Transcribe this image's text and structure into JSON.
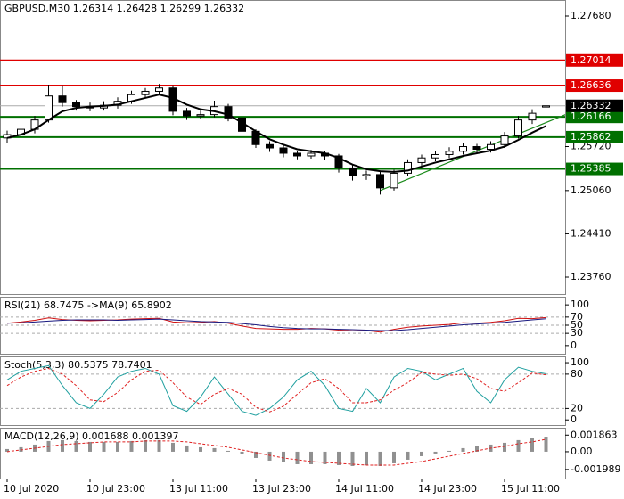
{
  "chart_data": [
    {
      "type": "candlestick",
      "title": "GBPUSD,M30  1.26314 1.26428 1.26299 1.26332",
      "categories": [
        "10 Jul 2020",
        null,
        null,
        null,
        null,
        null,
        "10 Jul 23:00",
        null,
        null,
        null,
        null,
        null,
        "13 Jul 11:00",
        null,
        null,
        null,
        null,
        null,
        "13 Jul 23:00",
        null,
        null,
        null,
        null,
        null,
        "14 Jul 11:00",
        null,
        null,
        null,
        null,
        null,
        "14 Jul 23:00",
        null,
        null,
        null,
        null,
        null,
        "15 Jul 11:00",
        null,
        null,
        null
      ],
      "open": [
        1.2585,
        1.259,
        1.2598,
        1.2612,
        1.2648,
        1.2638,
        1.2632,
        1.263,
        1.2634,
        1.264,
        1.265,
        1.2655,
        1.266,
        1.2625,
        1.2618,
        1.262,
        1.2632,
        1.2615,
        1.2595,
        1.2575,
        1.257,
        1.2562,
        1.2558,
        1.2562,
        1.2558,
        1.254,
        1.2528,
        1.253,
        1.251,
        1.2532,
        1.2548,
        1.2555,
        1.256,
        1.2565,
        1.2572,
        1.2568,
        1.2575,
        1.2588,
        1.2612,
        1.26314
      ],
      "high": [
        1.2596,
        1.2603,
        1.2618,
        1.2665,
        1.2664,
        1.2642,
        1.2638,
        1.264,
        1.2646,
        1.2656,
        1.266,
        1.2666,
        1.2664,
        1.263,
        1.2626,
        1.2641,
        1.2636,
        1.2619,
        1.2598,
        1.258,
        1.2574,
        1.2566,
        1.2567,
        1.2566,
        1.2561,
        1.2544,
        1.2536,
        1.2534,
        1.2537,
        1.2553,
        1.256,
        1.2566,
        1.2571,
        1.2578,
        1.2576,
        1.258,
        1.2594,
        1.2618,
        1.2628,
        1.26428
      ],
      "low": [
        1.2578,
        1.2584,
        1.2592,
        1.2608,
        1.2632,
        1.2626,
        1.2625,
        1.2626,
        1.2629,
        1.2636,
        1.2645,
        1.265,
        1.2619,
        1.2612,
        1.2613,
        1.2616,
        1.261,
        1.2588,
        1.257,
        1.2564,
        1.2556,
        1.2553,
        1.2554,
        1.2552,
        1.2533,
        1.2521,
        1.2522,
        1.25,
        1.2506,
        1.2528,
        1.2543,
        1.255,
        1.2555,
        1.256,
        1.2562,
        1.2563,
        1.257,
        1.2584,
        1.2606,
        1.26299
      ],
      "close": [
        1.259,
        1.2598,
        1.2612,
        1.2648,
        1.2638,
        1.2632,
        1.263,
        1.2634,
        1.264,
        1.265,
        1.2655,
        1.266,
        1.2625,
        1.2618,
        1.262,
        1.2632,
        1.2615,
        1.2595,
        1.2575,
        1.257,
        1.2562,
        1.2558,
        1.2562,
        1.2558,
        1.254,
        1.2528,
        1.253,
        1.251,
        1.2532,
        1.2548,
        1.2555,
        1.256,
        1.2565,
        1.2572,
        1.2568,
        1.2575,
        1.2588,
        1.2612,
        1.2622,
        1.26332
      ],
      "ma": {
        "color": "#000000",
        "values": [
          1.2585,
          1.259,
          1.2598,
          1.2612,
          1.2625,
          1.263,
          1.2632,
          1.2633,
          1.2635,
          1.264,
          1.2645,
          1.265,
          1.2645,
          1.2635,
          1.2628,
          1.2625,
          1.262,
          1.2608,
          1.2595,
          1.2583,
          1.2575,
          1.2568,
          1.2565,
          1.2562,
          1.2555,
          1.2545,
          1.2538,
          1.2535,
          1.2534,
          1.2536,
          1.2542,
          1.2548,
          1.2553,
          1.2558,
          1.2562,
          1.2566,
          1.2572,
          1.2582,
          1.2593,
          1.2603
        ]
      },
      "trendline": {
        "color": "#1a8a1a",
        "start": [
          27,
          1.2506
        ],
        "end": [
          40.4,
          1.262
        ]
      },
      "levels": [
        {
          "value": 1.27014,
          "color": "#e00000"
        },
        {
          "value": 1.26636,
          "color": "#e00000"
        },
        {
          "value": 1.26166,
          "color": "#007000"
        },
        {
          "value": 1.25862,
          "color": "#007000"
        },
        {
          "value": 1.25385,
          "color": "#007000"
        }
      ],
      "current": {
        "value": 1.26332,
        "color": "#000000"
      },
      "ylim": [
        1.23506,
        1.27921
      ],
      "yticks": [
        {
          "value": 1.2768,
          "label": "1.27680"
        },
        {
          "value": 1.2572,
          "label": "1.25720"
        },
        {
          "value": 1.2506,
          "label": "1.25060"
        },
        {
          "value": 1.2441,
          "label": "1.24410"
        },
        {
          "value": 1.2376,
          "label": "1.23760"
        }
      ]
    },
    {
      "type": "line",
      "title": "RSI(21) 68.7475  ->MA(9) 65.8902",
      "series": [
        {
          "color": "#d01010",
          "dash": false,
          "values": [
            55,
            58,
            62,
            68,
            64,
            62,
            61,
            62,
            63,
            65,
            66,
            67,
            58,
            56,
            57,
            59,
            55,
            48,
            42,
            41,
            40,
            40,
            42,
            41,
            38,
            36,
            37,
            33,
            40,
            45,
            48,
            50,
            52,
            56,
            55,
            57,
            61,
            67,
            66,
            68.7475
          ]
        },
        {
          "color": "#1a1a80",
          "dash": false,
          "values": [
            55,
            56,
            58,
            60,
            62,
            63,
            63,
            63,
            62,
            63,
            64,
            65,
            63,
            61,
            59,
            58,
            57,
            54,
            51,
            47,
            44,
            42,
            41,
            41,
            40,
            39,
            38,
            37,
            37,
            39,
            42,
            45,
            48,
            51,
            53,
            55,
            57,
            60,
            63,
            65.8902
          ]
        }
      ],
      "levels": [
        70,
        50,
        30
      ],
      "ylim": [
        -20,
        120
      ],
      "yticks": [
        100,
        70,
        50,
        30,
        0
      ]
    },
    {
      "type": "line",
      "title": "Stoch(5,3,3) 80.5375 78.7401",
      "series": [
        {
          "color": "#20a0a0",
          "dash": false,
          "values": [
            70,
            85,
            90,
            95,
            60,
            30,
            20,
            45,
            75,
            85,
            90,
            80,
            25,
            15,
            40,
            75,
            45,
            15,
            8,
            20,
            40,
            70,
            85,
            60,
            20,
            15,
            55,
            30,
            75,
            90,
            85,
            70,
            80,
            90,
            50,
            30,
            70,
            92,
            85,
            80.5375
          ]
        },
        {
          "color": "#e02020",
          "dash": true,
          "values": [
            60,
            75,
            85,
            90,
            80,
            60,
            35,
            32,
            48,
            70,
            85,
            87,
            65,
            40,
            27,
            45,
            55,
            45,
            22,
            14,
            24,
            45,
            65,
            72,
            55,
            30,
            30,
            35,
            52,
            65,
            83,
            80,
            78,
            80,
            72,
            55,
            50,
            65,
            82,
            78.7401
          ]
        }
      ],
      "levels": [
        80,
        20
      ],
      "ylim": [
        -9,
        111
      ],
      "yticks": [
        100,
        80,
        20,
        0
      ]
    },
    {
      "type": "macd",
      "title": "MACD(12,26,9) 0.001688 0.001397",
      "values": [
        0.0003,
        0.0005,
        0.0008,
        0.0012,
        0.0013,
        0.0012,
        0.0011,
        0.0011,
        0.0011,
        0.0012,
        0.0013,
        0.0013,
        0.001,
        0.0007,
        0.0005,
        0.0004,
        0.0001,
        -0.0003,
        -0.0007,
        -0.001,
        -0.0012,
        -0.0014,
        -0.0014,
        -0.0014,
        -0.0015,
        -0.0016,
        -0.0015,
        -0.0016,
        -0.0013,
        -0.0009,
        -0.0005,
        -0.0002,
        0.0001,
        0.0004,
        0.0006,
        0.0008,
        0.001,
        0.0013,
        0.0015,
        0.001688
      ],
      "color": "#909090",
      "signal": {
        "color": "#e02020",
        "values": [
          0,
          0.0002,
          0.0004,
          0.0006,
          0.0008,
          0.0009,
          0.001,
          0.0011,
          0.0011,
          0.0011,
          0.0012,
          0.0012,
          0.0012,
          0.0011,
          0.0009,
          0.0007,
          0.0005,
          0.0002,
          -0.0001,
          -0.0004,
          -0.0007,
          -0.0009,
          -0.0011,
          -0.0012,
          -0.0013,
          -0.0014,
          -0.0015,
          -0.0015,
          -0.0015,
          -0.0013,
          -0.0011,
          -0.0008,
          -0.0005,
          -0.0002,
          0.0001,
          0.0004,
          0.0006,
          0.0009,
          0.0011,
          0.001397
        ]
      },
      "ylim": [
        -0.003,
        0.00269
      ],
      "yticks": [
        0.001863,
        {
          "value": 0,
          "label": "0.00"
        },
        -0.001989
      ]
    }
  ]
}
